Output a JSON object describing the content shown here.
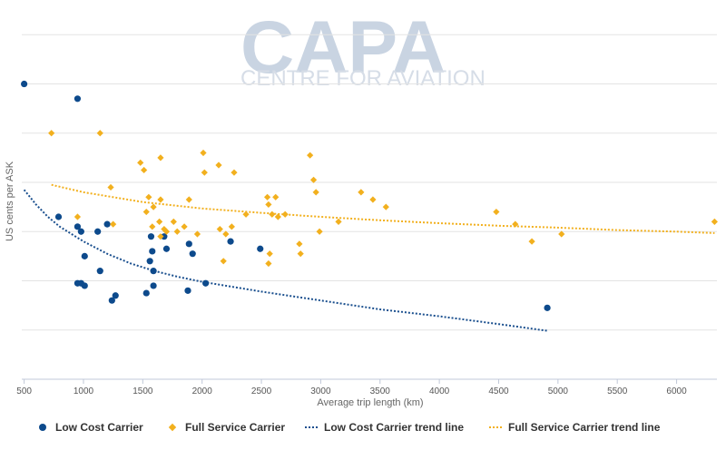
{
  "watermark": {
    "logo_text": "CAPA",
    "tagline": "CENTRE FOR AVIATION"
  },
  "chart_data": {
    "type": "scatter",
    "title": "",
    "xlabel": "Average trip length (km)",
    "ylabel": "US cents per ASK",
    "xlim": [
      480,
      6340
    ],
    "x_ticks": [
      500,
      1000,
      1500,
      2000,
      2500,
      3000,
      3500,
      4000,
      4500,
      5000,
      5500,
      6000
    ],
    "y_tick_labels_visible": false,
    "ylim": [
      0,
      7.3
    ],
    "y_gridlines": [
      1,
      2,
      3,
      4,
      5,
      6,
      7
    ],
    "grid": true,
    "legend_position": "bottom",
    "series": [
      {
        "name": "Low Cost Carrier",
        "kind": "points",
        "marker": "circle",
        "color": "#0d4a8c",
        "points": [
          [
            500,
            6.0
          ],
          [
            950,
            5.7
          ],
          [
            790,
            3.3
          ],
          [
            950,
            3.1
          ],
          [
            980,
            3.0
          ],
          [
            1120,
            3.0
          ],
          [
            1200,
            3.15
          ],
          [
            1010,
            2.5
          ],
          [
            1140,
            2.2
          ],
          [
            950,
            1.95
          ],
          [
            980,
            1.95
          ],
          [
            1010,
            1.9
          ],
          [
            1240,
            1.6
          ],
          [
            1270,
            1.7
          ],
          [
            1570,
            2.9
          ],
          [
            1580,
            2.6
          ],
          [
            1560,
            2.4
          ],
          [
            1590,
            2.2
          ],
          [
            1530,
            1.75
          ],
          [
            1590,
            1.9
          ],
          [
            1680,
            2.9
          ],
          [
            1700,
            2.65
          ],
          [
            1890,
            2.75
          ],
          [
            1920,
            2.55
          ],
          [
            1880,
            1.8
          ],
          [
            2030,
            1.95
          ],
          [
            2240,
            2.8
          ],
          [
            2490,
            2.65
          ],
          [
            4910,
            1.45
          ]
        ]
      },
      {
        "name": "Full Service Carrier",
        "kind": "points",
        "marker": "diamond",
        "color": "#f2b01e",
        "points": [
          [
            730,
            5.0
          ],
          [
            1140,
            5.0
          ],
          [
            1230,
            3.9
          ],
          [
            1250,
            3.15
          ],
          [
            950,
            3.3
          ],
          [
            1480,
            4.4
          ],
          [
            1510,
            4.25
          ],
          [
            1650,
            4.5
          ],
          [
            2010,
            4.6
          ],
          [
            2020,
            4.2
          ],
          [
            2140,
            4.35
          ],
          [
            2270,
            4.2
          ],
          [
            2910,
            4.55
          ],
          [
            2940,
            4.05
          ],
          [
            2960,
            3.8
          ],
          [
            1550,
            3.7
          ],
          [
            1650,
            3.65
          ],
          [
            1530,
            3.4
          ],
          [
            1590,
            3.5
          ],
          [
            1580,
            3.1
          ],
          [
            1640,
            3.2
          ],
          [
            1680,
            3.05
          ],
          [
            1700,
            3.0
          ],
          [
            1760,
            3.2
          ],
          [
            1650,
            2.9
          ],
          [
            1790,
            3.0
          ],
          [
            1890,
            3.65
          ],
          [
            1850,
            3.1
          ],
          [
            1960,
            2.95
          ],
          [
            2150,
            3.05
          ],
          [
            2200,
            2.95
          ],
          [
            2250,
            3.1
          ],
          [
            2180,
            2.4
          ],
          [
            2370,
            3.35
          ],
          [
            2550,
            3.7
          ],
          [
            2560,
            3.55
          ],
          [
            2620,
            3.7
          ],
          [
            2590,
            3.35
          ],
          [
            2640,
            3.3
          ],
          [
            2700,
            3.35
          ],
          [
            2570,
            2.55
          ],
          [
            2560,
            2.35
          ],
          [
            2820,
            2.75
          ],
          [
            2830,
            2.55
          ],
          [
            2990,
            3.0
          ],
          [
            3150,
            3.2
          ],
          [
            3340,
            3.8
          ],
          [
            3440,
            3.65
          ],
          [
            3550,
            3.5
          ],
          [
            4480,
            3.4
          ],
          [
            4640,
            3.15
          ],
          [
            4780,
            2.8
          ],
          [
            5030,
            2.95
          ],
          [
            6320,
            3.2
          ]
        ]
      },
      {
        "name": "Low Cost Carrier trend line",
        "kind": "trend",
        "style": "dotted",
        "color": "#1a4f8e",
        "points": [
          [
            500,
            3.85
          ],
          [
            600,
            3.55
          ],
          [
            700,
            3.3
          ],
          [
            800,
            3.1
          ],
          [
            900,
            2.95
          ],
          [
            1000,
            2.8
          ],
          [
            1200,
            2.55
          ],
          [
            1400,
            2.35
          ],
          [
            1600,
            2.2
          ],
          [
            1800,
            2.08
          ],
          [
            2000,
            1.98
          ],
          [
            2500,
            1.78
          ],
          [
            3000,
            1.6
          ],
          [
            3500,
            1.42
          ],
          [
            4000,
            1.28
          ],
          [
            4500,
            1.12
          ],
          [
            4920,
            0.98
          ]
        ]
      },
      {
        "name": "Full Service Carrier trend line",
        "kind": "trend",
        "style": "dotted",
        "color": "#f2b01e",
        "points": [
          [
            730,
            3.95
          ],
          [
            1000,
            3.8
          ],
          [
            1500,
            3.6
          ],
          [
            2000,
            3.47
          ],
          [
            2500,
            3.38
          ],
          [
            3000,
            3.3
          ],
          [
            3500,
            3.23
          ],
          [
            4000,
            3.17
          ],
          [
            4500,
            3.12
          ],
          [
            5000,
            3.08
          ],
          [
            5500,
            3.03
          ],
          [
            6000,
            3.0
          ],
          [
            6320,
            2.97
          ]
        ]
      }
    ]
  }
}
